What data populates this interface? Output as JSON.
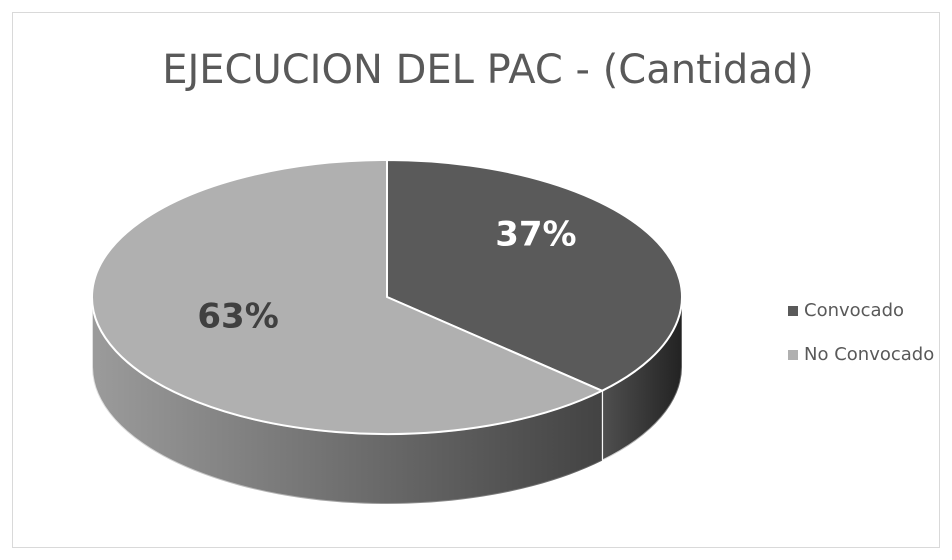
{
  "chart_data": {
    "type": "pie",
    "title": "EJECUCION DEL PAC - (Cantidad)",
    "categories": [
      "Convocado",
      "No Convocado"
    ],
    "values": [
      37,
      63
    ],
    "value_labels": [
      "37%",
      "63%"
    ],
    "colors": [
      "#5a5a5a",
      "#b0b0b0"
    ],
    "legend": "right"
  }
}
